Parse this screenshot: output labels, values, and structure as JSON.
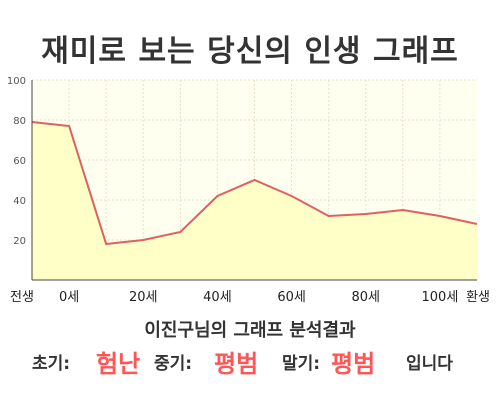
{
  "title": "재미로 보는 당신의 인생 그래프",
  "subtitle": "이진구님의 그래프 분석결과",
  "result": {
    "early_label": "초기:",
    "early_value": "험난",
    "middle_label": "중기:",
    "middle_value": "평범",
    "late_label": "말기:",
    "late_value": "평범",
    "suffix": "입니다"
  },
  "colors": {
    "line": "#e06060",
    "fill": "#ffffc8",
    "plot_background": "#fffff0",
    "grid": "#e4e4c8",
    "accent": "#ff5555"
  },
  "chart_data": {
    "type": "area",
    "x": [
      "전생",
      "0세",
      "10세",
      "20세",
      "30세",
      "40세",
      "50세",
      "60세",
      "70세",
      "80세",
      "90세",
      "100세",
      "환생"
    ],
    "x_tick_labels": [
      "전생",
      "0세",
      "20세",
      "40세",
      "60세",
      "80세",
      "100세",
      "환생"
    ],
    "y": [
      79,
      77,
      18,
      20,
      24,
      42,
      50,
      42,
      32,
      33,
      35,
      32,
      28
    ],
    "y_ticks": [
      20,
      40,
      60,
      80,
      100
    ],
    "ylim": [
      0,
      100
    ],
    "grid": true
  }
}
